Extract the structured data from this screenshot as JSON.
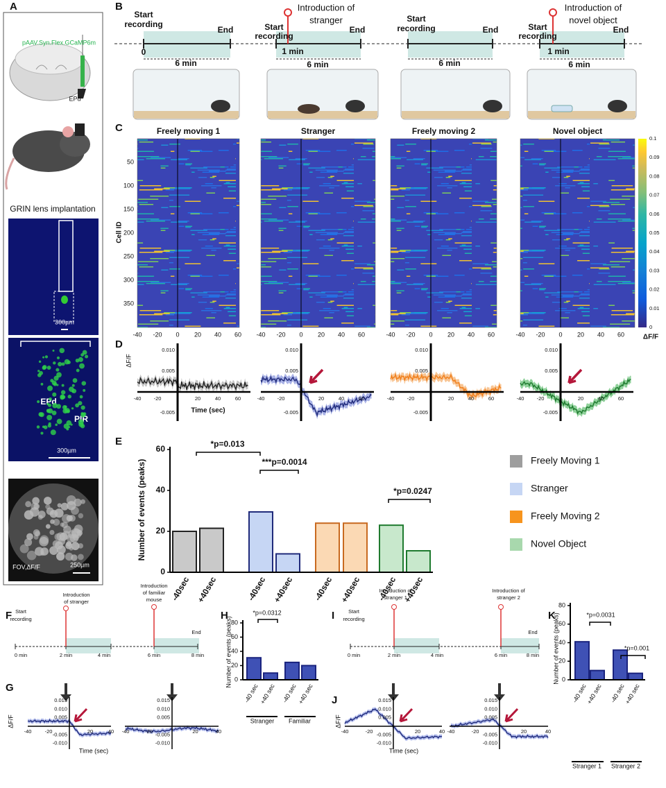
{
  "panel_labels": {
    "a": "A",
    "b": "B",
    "c": "C",
    "d": "D",
    "e": "E",
    "f": "F",
    "g": "G",
    "h": "H",
    "i": "I",
    "j": "J",
    "k": "K"
  },
  "panel_a": {
    "virus": "pAAV.Syn.Flex.GCaMP6m",
    "target": "EPd",
    "caption": "GRIN lens implantation",
    "scale_lens": "300µm",
    "region_1": "EPd",
    "region_2": "PIR",
    "scale_histology": "300µm",
    "fov": "FOV,ΔF/F",
    "scale_fov": "250µm"
  },
  "panel_b": {
    "sessions": [
      {
        "start": [
          "Start",
          "recording"
        ],
        "end": "End",
        "time_zero": "0",
        "duration": "6 min"
      },
      {
        "start": [
          "Start",
          "recording"
        ],
        "event": [
          "Introduction of",
          "stranger"
        ],
        "end": "End",
        "event_time": "1 min",
        "duration": "6 min"
      },
      {
        "start": [
          "Start",
          "recording"
        ],
        "end": "End",
        "duration": "6 min"
      },
      {
        "start": [
          "Start",
          "recording"
        ],
        "event": [
          "Introduction of",
          "novel object"
        ],
        "end": "End",
        "event_time": "1 min",
        "duration": "6 min"
      }
    ]
  },
  "panel_c": {
    "titles": [
      "Freely moving 1",
      "Stranger",
      "Freely moving 2",
      "Novel object"
    ],
    "y_label": "Cell ID",
    "y_ticks": [
      50,
      100,
      150,
      200,
      250,
      300,
      350
    ],
    "x_ticks": [
      -40,
      -20,
      0,
      20,
      40,
      60
    ],
    "colorbar_ticks": [
      0.1,
      0.09,
      0.08,
      0.07,
      0.06,
      0.05,
      0.04,
      0.03,
      0.02,
      0.01,
      0
    ],
    "colorbar_label": "ΔF/F"
  },
  "panel_d": {
    "y_label": "ΔF/F",
    "y_ticks": [
      "0.010",
      "0.005",
      "-0.005"
    ],
    "x_ticks": [
      -40,
      -20,
      20,
      40,
      60
    ],
    "x_label": "Time (sec)"
  },
  "chart_data": [
    {
      "type": "bar",
      "y_label": "Number of events (peaks)",
      "categories": [
        "-40sec",
        "+40sec",
        "-40sec",
        "+40sec",
        "-40sec",
        "+40sec",
        "-40sec",
        "+40sec"
      ],
      "values": [
        20,
        21.5,
        29.5,
        9,
        24,
        24,
        23,
        10.5
      ],
      "colors": [
        "#c9c9c9",
        "#c9c9c9",
        "#c6d6f4",
        "#c6d6f4",
        "#fbd9b4",
        "#fbd9b4",
        "#c8e8cc",
        "#c8e8cc"
      ],
      "edge_colors": [
        "#222222",
        "#222222",
        "#1f2a7a",
        "#1f2a7a",
        "#c8691f",
        "#c8691f",
        "#1e7a2e",
        "#1e7a2e"
      ],
      "ylim": [
        0,
        60
      ],
      "yticks": [
        0,
        20,
        40,
        60
      ],
      "annotations": [
        "*p=0.013",
        "***p=0.0014",
        "*p=0.0247"
      ],
      "legend": [
        {
          "name": "Freely Moving 1",
          "color": "#9e9e9e"
        },
        {
          "name": "Stranger",
          "color": "#c6d6f4"
        },
        {
          "name": "Freely Moving 2",
          "color": "#f7941d"
        },
        {
          "name": "Novel Object",
          "color": "#a8d8ad"
        }
      ]
    },
    {
      "type": "bar",
      "y_label": "Number of events (peaks)",
      "categories": [
        "-40 sec",
        "+40 sec",
        "-40 sec",
        "+40 sec"
      ],
      "values": [
        31,
        9.5,
        24.5,
        20
      ],
      "groups": [
        "Stranger",
        "Familiar"
      ],
      "color": "#3f51b5",
      "edge_color": "#1a237e",
      "ylim": [
        0,
        80
      ],
      "yticks": [
        0,
        20,
        40,
        60,
        80
      ],
      "annotations": [
        "*p=0.0312"
      ]
    },
    {
      "type": "bar",
      "y_label": "Number of events (peaks)",
      "categories": [
        "-40 sec",
        "+40 sec",
        "-40 sec",
        "+40 sec"
      ],
      "values": [
        41,
        10,
        32,
        7
      ],
      "groups": [
        "Stranger 1",
        "Stranger 2"
      ],
      "color": "#3f51b5",
      "edge_color": "#1a237e",
      "ylim": [
        0,
        80
      ],
      "yticks": [
        0,
        20,
        40,
        60,
        80
      ],
      "annotations": [
        "*p=0.0031",
        "*p=0.001"
      ]
    }
  ],
  "panel_f": {
    "start": [
      "Start",
      "recording"
    ],
    "start_time": "0 min",
    "event_1": [
      "Introduction",
      "of stranger"
    ],
    "event_1_time": "2 min",
    "end_1_time": "4 min",
    "event_2": [
      "Introduction",
      "of familiar",
      "mouse"
    ],
    "event_2_time": "6 min",
    "end": "End",
    "end_2_time": "8 min"
  },
  "panel_g": {
    "y_label": "ΔF/F",
    "y_ticks": [
      "0.015",
      "0.010",
      "0.005",
      "-0.005",
      "-0.010"
    ],
    "x_ticks": [
      -40,
      -20,
      20,
      40
    ],
    "x_label": "Time (sec)"
  },
  "panel_i": {
    "start": [
      "Start",
      "recording"
    ],
    "start_time": "0 min",
    "event_1": [
      "Introduction of",
      "stranger 1"
    ],
    "event_1_time": "2 min",
    "end_1_time": "4 min",
    "event_2": [
      "Introduction of",
      "stranger 2"
    ],
    "event_2_time": "6 min",
    "end": "End",
    "end_2_time": "8 min"
  },
  "panel_j": {
    "y_label": "ΔF/F",
    "y_ticks": [
      "0.015",
      "0.010",
      "0.005",
      "-0.005",
      "-0.010"
    ],
    "x_ticks": [
      -40,
      -20,
      20,
      40
    ],
    "x_label": "Time (sec)"
  }
}
